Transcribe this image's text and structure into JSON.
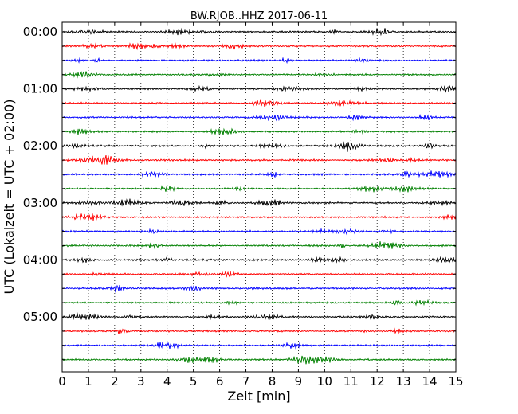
{
  "chart_data": {
    "type": "line",
    "title": "BW.RJOB..HHZ 2017-06-11",
    "xlabel": "Zeit  [min]",
    "ylabel": "UTC (Lokalzeit = UTC + 02:00)",
    "xlim": [
      0,
      15
    ],
    "x_ticks": [
      "0",
      "1",
      "2",
      "3",
      "4",
      "5",
      "6",
      "7",
      "8",
      "9",
      "10",
      "11",
      "12",
      "13",
      "14",
      "15"
    ],
    "y_ticks": [
      "00:00",
      "01:00",
      "02:00",
      "03:00",
      "04:00",
      "05:00"
    ],
    "grid": "vertical dotted",
    "trace_interval_min": 15,
    "trace_colors": [
      "#000000",
      "#ff0000",
      "#0000ff",
      "#008000"
    ],
    "traces": [
      {
        "start": "00:00"
      },
      {
        "start": "00:15"
      },
      {
        "start": "00:30"
      },
      {
        "start": "00:45"
      },
      {
        "start": "01:00"
      },
      {
        "start": "01:15"
      },
      {
        "start": "01:30"
      },
      {
        "start": "01:45"
      },
      {
        "start": "02:00"
      },
      {
        "start": "02:15"
      },
      {
        "start": "02:30"
      },
      {
        "start": "02:45"
      },
      {
        "start": "03:00"
      },
      {
        "start": "03:15"
      },
      {
        "start": "03:30"
      },
      {
        "start": "03:45"
      },
      {
        "start": "04:00"
      },
      {
        "start": "04:15"
      },
      {
        "start": "04:30"
      },
      {
        "start": "04:45"
      },
      {
        "start": "05:00"
      },
      {
        "start": "05:15"
      },
      {
        "start": "05:30"
      },
      {
        "start": "05:45"
      }
    ]
  }
}
